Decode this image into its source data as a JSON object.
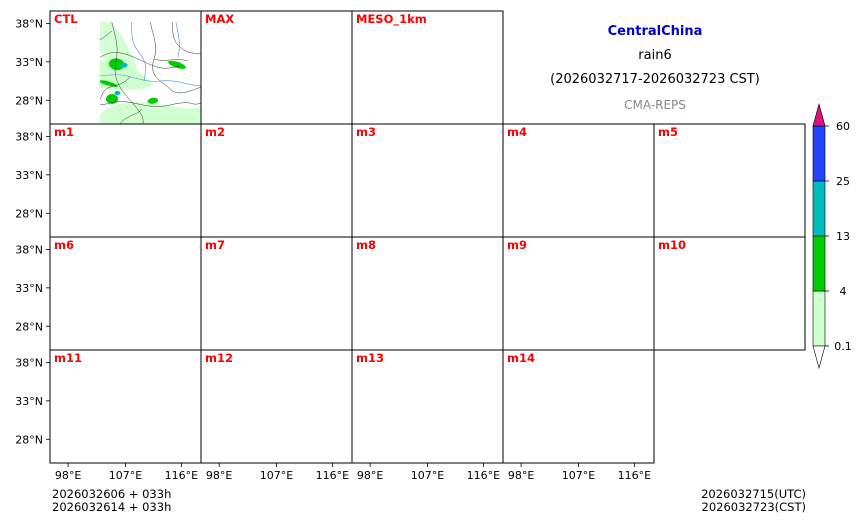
{
  "header": {
    "region": "CentralChina",
    "variable": "rain6",
    "period": "(2026032717-2026032723 CST)",
    "source": "CMA-REPS"
  },
  "colors": {
    "region_title": "#0000cc",
    "panel_label": "#ff0000",
    "source_text": "#888888",
    "rain_light": "#ccffcc",
    "rain_moderate": "#00cc00",
    "rain_heavy": "#00bbbb",
    "rain_storm": "#2244ff",
    "rain_extreme": "#e0107a",
    "river": "#4a90d9"
  },
  "panels": [
    {
      "label": "CTL"
    },
    {
      "label": "MAX"
    },
    {
      "label": "MESO_1km"
    },
    {
      "label": "m1"
    },
    {
      "label": "m2"
    },
    {
      "label": "m3"
    },
    {
      "label": "m4"
    },
    {
      "label": "m5"
    },
    {
      "label": "m6"
    },
    {
      "label": "m7"
    },
    {
      "label": "m8"
    },
    {
      "label": "m9"
    },
    {
      "label": "m10"
    },
    {
      "label": "m11"
    },
    {
      "label": "m12"
    },
    {
      "label": "m13"
    },
    {
      "label": "m14"
    }
  ],
  "map_axes": {
    "latitude_labels": [
      "38°N",
      "33°N",
      "28°N"
    ],
    "longitude_labels": [
      "98°E",
      "107°E",
      "116°E"
    ]
  },
  "colorbar": {
    "levels": [
      0.1,
      4,
      13,
      25,
      60
    ],
    "tick_labels": [
      "0.1",
      "4",
      "13",
      "25",
      "60"
    ]
  },
  "footer": {
    "init_utc": "2026032606  +  033h",
    "init_cst": "2026032614  +  033h",
    "valid_utc": "2026032715(UTC)",
    "valid_cst": "2026032723(CST)"
  }
}
